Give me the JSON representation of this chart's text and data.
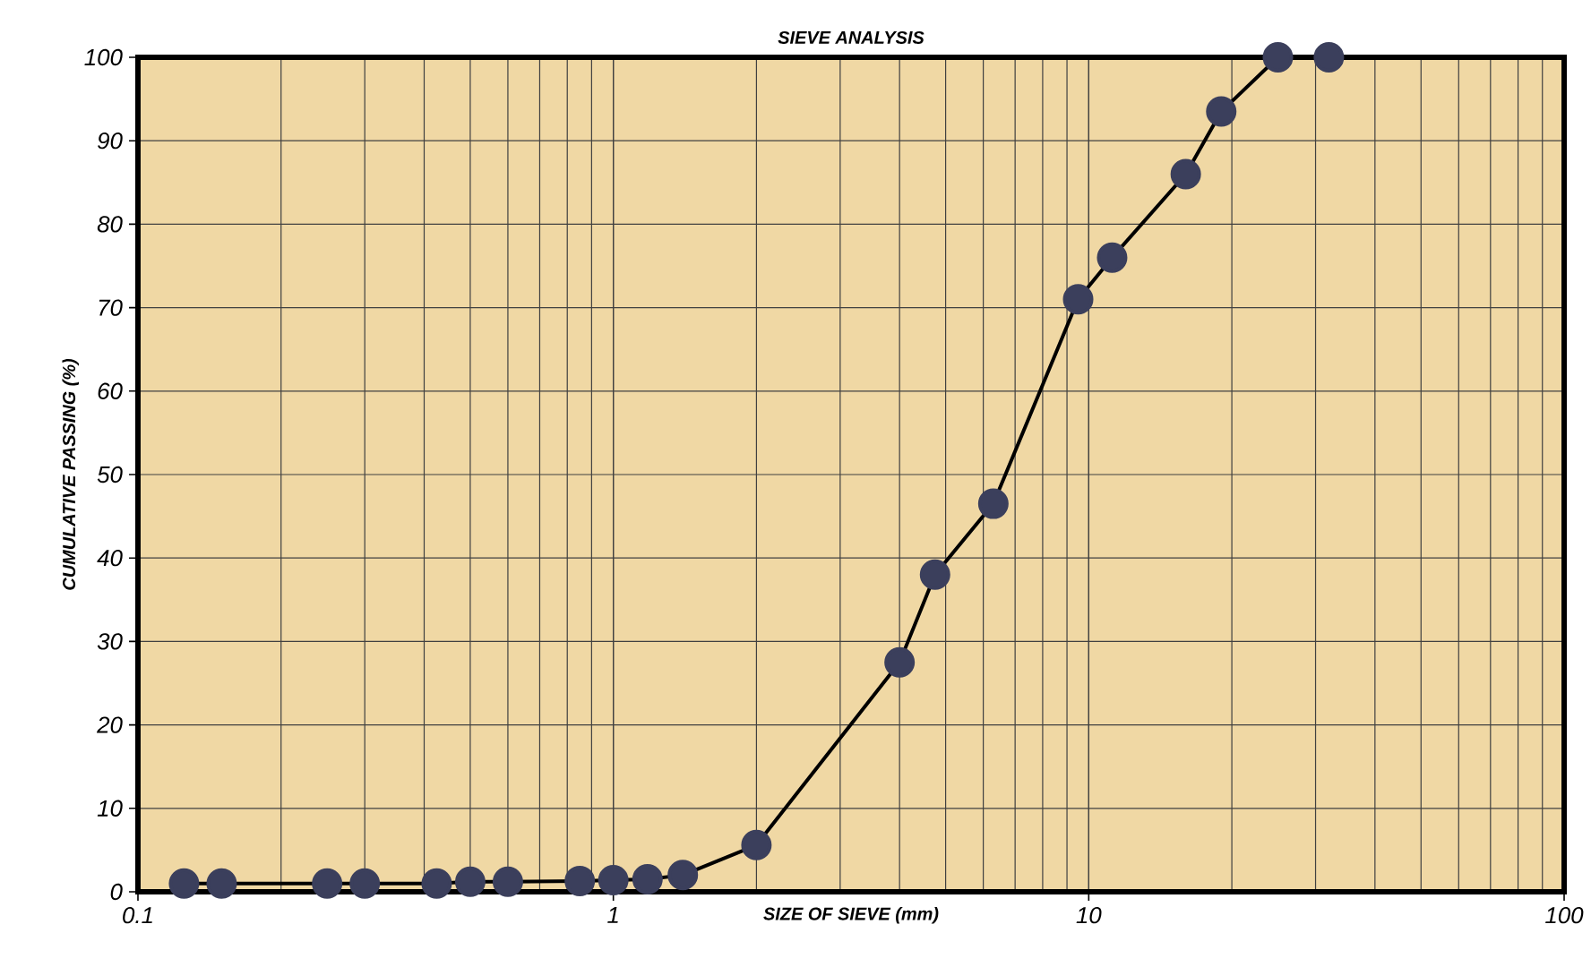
{
  "chart_data": {
    "type": "line",
    "title": "SIEVE ANALYSIS",
    "xlabel": "SIZE OF SIEVE (mm)",
    "ylabel": "CUMULATIVE PASSING (%)",
    "x": [
      0.125,
      0.15,
      0.25,
      0.3,
      0.425,
      0.5,
      0.6,
      0.85,
      1,
      1.18,
      1.4,
      2,
      4,
      4.75,
      6.3,
      9.5,
      11.2,
      16,
      19,
      25,
      32
    ],
    "series": [
      {
        "color": "#3b3f5c",
        "values": [
          1,
          1,
          1,
          1,
          1,
          1.2,
          1.2,
          1.3,
          1.4,
          1.5,
          2,
          5.6,
          27.5,
          38,
          46.5,
          71,
          76,
          86,
          93.5,
          100,
          100
        ]
      }
    ],
    "xlim": [
      0.1,
      100
    ],
    "xticks": [
      0.1,
      1,
      10,
      100
    ],
    "ylim": [
      0,
      100
    ],
    "yticks": [
      0,
      10,
      20,
      30,
      40,
      50,
      60,
      70,
      80,
      90,
      100
    ],
    "log": "x",
    "grid": true,
    "marker": "circle",
    "line_style": "solid"
  }
}
